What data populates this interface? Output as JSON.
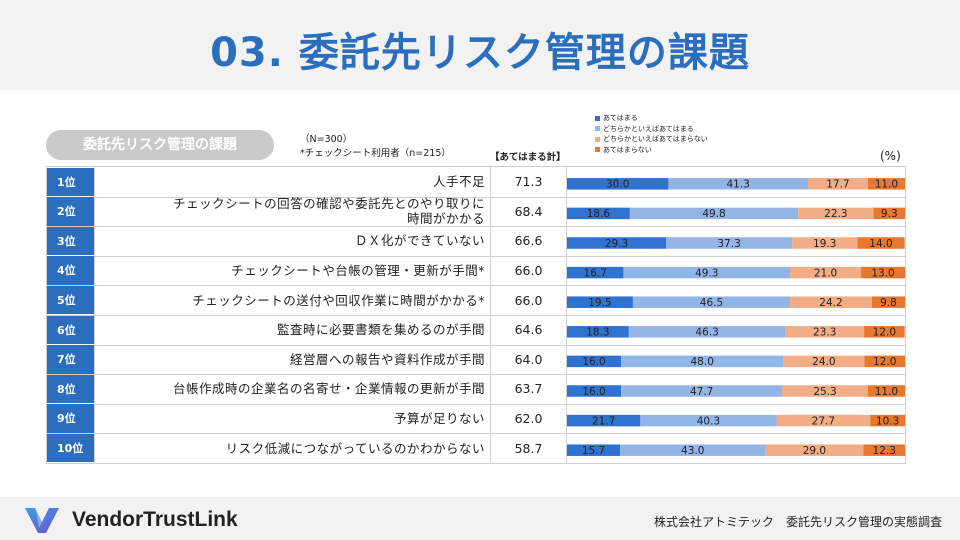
{
  "title": "03. 委託先リスク管理の課題",
  "pill_label": "委託先リスク管理の課題",
  "note_n": "（N=300）",
  "note_star": "*チェックシート利用者（n=215）",
  "sum_header": "【あてはまる計】",
  "unit": "(%)",
  "footer": {
    "brand": "VendorTrustLink",
    "credit": "株式会社アトミテック　委託先リスク管理の実態調査"
  },
  "colors": {
    "header_blue": "#2a6ebd",
    "series": [
      "#2f72cf",
      "#93b5e6",
      "#f2ad86",
      "#e8782f"
    ]
  },
  "chart_data": {
    "type": "bar",
    "stacked": true,
    "orientation": "horizontal",
    "xlim": [
      0,
      100
    ],
    "series": [
      {
        "name": "あてはまる",
        "values": [
          30.0,
          18.6,
          29.3,
          16.7,
          19.5,
          18.3,
          16.0,
          16.0,
          21.7,
          15.7
        ]
      },
      {
        "name": "どちらかといえばあてはまる",
        "values": [
          41.3,
          49.8,
          37.3,
          49.3,
          46.5,
          46.3,
          48.0,
          47.7,
          40.3,
          43.0
        ]
      },
      {
        "name": "どちらかといえばあてはまらない",
        "values": [
          17.7,
          22.3,
          19.3,
          21.0,
          24.2,
          23.3,
          24.0,
          25.3,
          27.7,
          29.0
        ]
      },
      {
        "name": "あてはまらない",
        "values": [
          11.0,
          9.3,
          14.0,
          13.0,
          9.8,
          12.0,
          12.0,
          11.0,
          10.3,
          12.3
        ]
      }
    ],
    "rows": [
      {
        "rank": "1位",
        "label": [
          "人手不足"
        ],
        "total": "71.3"
      },
      {
        "rank": "2位",
        "label": [
          "チェックシートの回答の確認や委託先とのやり取りに",
          "時間がかかる"
        ],
        "total": "68.4"
      },
      {
        "rank": "3位",
        "label": [
          "ＤＸ化ができていない"
        ],
        "total": "66.6"
      },
      {
        "rank": "4位",
        "label": [
          "チェックシートや台帳の管理・更新が手間*"
        ],
        "total": "66.0"
      },
      {
        "rank": "5位",
        "label": [
          "チェックシートの送付や回収作業に時間がかかる*"
        ],
        "total": "66.0"
      },
      {
        "rank": "6位",
        "label": [
          "監査時に必要書類を集めるのが手間"
        ],
        "total": "64.6"
      },
      {
        "rank": "7位",
        "label": [
          "経営層への報告や資料作成が手間"
        ],
        "total": "64.0"
      },
      {
        "rank": "8位",
        "label": [
          "台帳作成時の企業名の名寄せ・企業情報の更新が手間"
        ],
        "total": "63.7"
      },
      {
        "rank": "9位",
        "label": [
          "予算が足りない"
        ],
        "total": "62.0"
      },
      {
        "rank": "10位",
        "label": [
          "リスク低減につながっているのかわからない"
        ],
        "total": "58.7"
      }
    ]
  }
}
